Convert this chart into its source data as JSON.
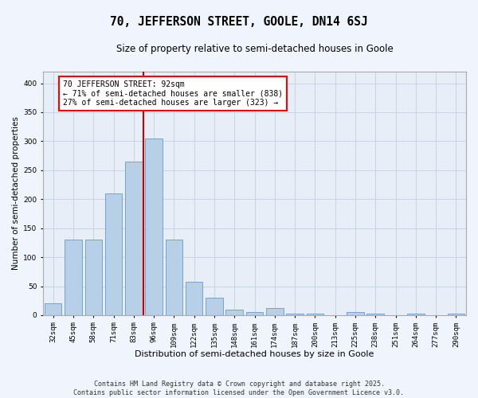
{
  "title": "70, JEFFERSON STREET, GOOLE, DN14 6SJ",
  "subtitle": "Size of property relative to semi-detached houses in Goole",
  "xlabel": "Distribution of semi-detached houses by size in Goole",
  "ylabel": "Number of semi-detached properties",
  "categories": [
    "32sqm",
    "45sqm",
    "58sqm",
    "71sqm",
    "83sqm",
    "96sqm",
    "109sqm",
    "122sqm",
    "135sqm",
    "148sqm",
    "161sqm",
    "174sqm",
    "187sqm",
    "200sqm",
    "213sqm",
    "225sqm",
    "238sqm",
    "251sqm",
    "264sqm",
    "277sqm",
    "290sqm"
  ],
  "values": [
    20,
    130,
    130,
    210,
    265,
    305,
    130,
    57,
    30,
    10,
    5,
    12,
    2,
    2,
    0,
    5,
    2,
    0,
    2,
    0,
    2
  ],
  "bar_color": "#b8cfe8",
  "bar_edge_color": "#6699cc",
  "grid_color": "#c8d4e4",
  "plot_bg_color": "#e8eef8",
  "figure_bg_color": "#f0f4fc",
  "vline_color": "#cc0000",
  "vline_index": 5,
  "annotation_text": "70 JEFFERSON STREET: 92sqm\n← 71% of semi-detached houses are smaller (838)\n27% of semi-detached houses are larger (323) →",
  "annotation_fontsize": 7,
  "title_fontsize": 10.5,
  "subtitle_fontsize": 8.5,
  "xlabel_fontsize": 8,
  "ylabel_fontsize": 7.5,
  "tick_fontsize": 6.5,
  "footer_text": "Contains HM Land Registry data © Crown copyright and database right 2025.\nContains public sector information licensed under the Open Government Licence v3.0.",
  "footer_fontsize": 6,
  "ylim": [
    0,
    420
  ],
  "yticks": [
    0,
    50,
    100,
    150,
    200,
    250,
    300,
    350,
    400
  ]
}
